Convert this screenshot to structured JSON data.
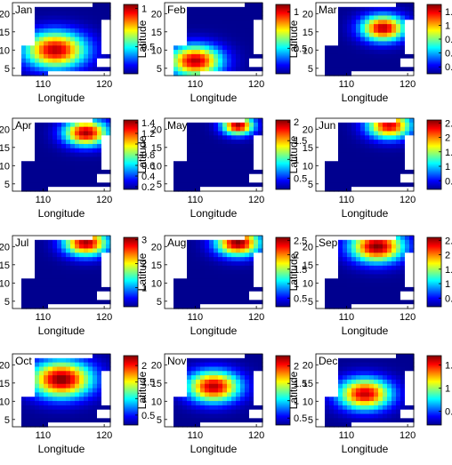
{
  "chart_data": [
    {
      "type": "heatmap",
      "month": "Jan",
      "xlabel": "Longitude",
      "ylabel": "Latitude",
      "xticks": [
        "110",
        "120"
      ],
      "yticks": [
        "5",
        "10",
        "15",
        "20"
      ],
      "xlim": [
        105,
        121
      ],
      "ylim": [
        3,
        23
      ],
      "cbar_ticks": [
        "0.5",
        "1"
      ],
      "cbar_vals": [
        0.5,
        1
      ],
      "cbar_range": [
        0.15,
        1.05
      ],
      "hotspots": [
        {
          "lon": 112,
          "lat": 10,
          "value": 1.0,
          "spread": 3.5
        }
      ]
    },
    {
      "type": "heatmap",
      "month": "Feb",
      "xlabel": "Longitude",
      "ylabel": "Latitude",
      "xticks": [
        "110",
        "120"
      ],
      "yticks": [
        "5",
        "10",
        "15",
        "20"
      ],
      "xlim": [
        105,
        121
      ],
      "ylim": [
        3,
        23
      ],
      "cbar_ticks": [
        "0.5",
        "1"
      ],
      "cbar_vals": [
        0.5,
        1
      ],
      "cbar_range": [
        0.15,
        1.1
      ],
      "hotspots": [
        {
          "lon": 110,
          "lat": 7,
          "value": 1.05,
          "spread": 3.0
        }
      ]
    },
    {
      "type": "heatmap",
      "month": "Mar",
      "xlabel": "Longitude",
      "ylabel": "Latitude",
      "xticks": [
        "110",
        "120"
      ],
      "yticks": [
        "5",
        "10",
        "15",
        "20"
      ],
      "xlim": [
        105,
        121
      ],
      "ylim": [
        3,
        23
      ],
      "cbar_ticks": [
        "0.4",
        "0.6",
        "0.8",
        "1",
        "1.2"
      ],
      "cbar_vals": [
        0.4,
        0.6,
        0.8,
        1,
        1.2
      ],
      "cbar_range": [
        0.3,
        1.3
      ],
      "hotspots": [
        {
          "lon": 116,
          "lat": 16,
          "value": 1.25,
          "spread": 2.5
        }
      ]
    },
    {
      "type": "heatmap",
      "month": "Apr",
      "xlabel": "Longitude",
      "ylabel": "Latitude",
      "xticks": [
        "110",
        "120"
      ],
      "yticks": [
        "5",
        "10",
        "15",
        "20"
      ],
      "xlim": [
        105,
        121
      ],
      "ylim": [
        3,
        23
      ],
      "cbar_ticks": [
        "0.2",
        "0.4",
        "0.6",
        "0.8",
        "1",
        "1.2",
        "1.4"
      ],
      "cbar_vals": [
        0.2,
        0.4,
        0.6,
        0.8,
        1,
        1.2,
        1.4
      ],
      "cbar_range": [
        0.15,
        1.45
      ],
      "hotspots": [
        {
          "lon": 117,
          "lat": 19,
          "value": 1.4,
          "spread": 2.5
        }
      ]
    },
    {
      "type": "heatmap",
      "month": "May",
      "xlabel": "Longitude",
      "ylabel": "Latitude",
      "xticks": [
        "110",
        "120"
      ],
      "yticks": [
        "5",
        "10",
        "15",
        "20"
      ],
      "xlim": [
        105,
        121
      ],
      "ylim": [
        3,
        23
      ],
      "cbar_ticks": [
        "0.5",
        "1",
        "1.5",
        "2"
      ],
      "cbar_vals": [
        0.5,
        1,
        1.5,
        2
      ],
      "cbar_range": [
        0.2,
        2.05
      ],
      "hotspots": [
        {
          "lon": 117,
          "lat": 21,
          "value": 2.0,
          "spread": 1.8
        }
      ]
    },
    {
      "type": "heatmap",
      "month": "Jun",
      "xlabel": "Longitude",
      "ylabel": "Latitude",
      "xticks": [
        "110",
        "120"
      ],
      "yticks": [
        "5",
        "10",
        "15",
        "20"
      ],
      "xlim": [
        105,
        121
      ],
      "ylim": [
        3,
        23
      ],
      "cbar_ticks": [
        "0.5",
        "1",
        "1.5",
        "2",
        "2.5"
      ],
      "cbar_vals": [
        0.5,
        1,
        1.5,
        2,
        2.5
      ],
      "cbar_range": [
        0.2,
        2.6
      ],
      "hotspots": [
        {
          "lon": 117,
          "lat": 21,
          "value": 2.4,
          "spread": 2.5
        }
      ]
    },
    {
      "type": "heatmap",
      "month": "Jul",
      "xlabel": "Longitude",
      "ylabel": "Latitude",
      "xticks": [
        "110",
        "120"
      ],
      "yticks": [
        "5",
        "10",
        "15",
        "20"
      ],
      "xlim": [
        105,
        121
      ],
      "ylim": [
        3,
        23
      ],
      "cbar_ticks": [
        "1",
        "2",
        "3"
      ],
      "cbar_vals": [
        1,
        2,
        3
      ],
      "cbar_range": [
        0.2,
        3.1
      ],
      "hotspots": [
        {
          "lon": 117,
          "lat": 21,
          "value": 3.0,
          "spread": 2.5
        }
      ]
    },
    {
      "type": "heatmap",
      "month": "Aug",
      "xlabel": "Longitude",
      "ylabel": "Latitude",
      "xticks": [
        "110",
        "120"
      ],
      "yticks": [
        "5",
        "10",
        "15",
        "20"
      ],
      "xlim": [
        105,
        121
      ],
      "ylim": [
        3,
        23
      ],
      "cbar_ticks": [
        "0.5",
        "1",
        "1.5",
        "2",
        "2.5"
      ],
      "cbar_vals": [
        0.5,
        1,
        1.5,
        2,
        2.5
      ],
      "cbar_range": [
        0.2,
        2.6
      ],
      "hotspots": [
        {
          "lon": 117,
          "lat": 21,
          "value": 2.6,
          "spread": 2.5
        }
      ]
    },
    {
      "type": "heatmap",
      "month": "Sep",
      "xlabel": "Longitude",
      "ylabel": "Latitude",
      "xticks": [
        "110",
        "120"
      ],
      "yticks": [
        "5",
        "10",
        "15",
        "20"
      ],
      "xlim": [
        105,
        121
      ],
      "ylim": [
        3,
        23
      ],
      "cbar_ticks": [
        "0.5",
        "1",
        "1.5",
        "2",
        "2.5"
      ],
      "cbar_vals": [
        0.5,
        1,
        1.5,
        2,
        2.5
      ],
      "cbar_range": [
        0.2,
        2.6
      ],
      "hotspots": [
        {
          "lon": 115,
          "lat": 20,
          "value": 2.6,
          "spread": 3.0
        }
      ]
    },
    {
      "type": "heatmap",
      "month": "Oct",
      "xlabel": "Longitude",
      "ylabel": "Latitude",
      "xticks": [
        "110",
        "120"
      ],
      "yticks": [
        "5",
        "10",
        "15",
        "20"
      ],
      "xlim": [
        105,
        121
      ],
      "ylim": [
        3,
        23
      ],
      "cbar_ticks": [
        "0.5",
        "1",
        "1.5",
        "2"
      ],
      "cbar_vals": [
        0.5,
        1,
        1.5,
        2
      ],
      "cbar_range": [
        0.2,
        2.3
      ],
      "hotspots": [
        {
          "lon": 113,
          "lat": 16,
          "value": 2.3,
          "spread": 3.5
        }
      ]
    },
    {
      "type": "heatmap",
      "month": "Nov",
      "xlabel": "Longitude",
      "ylabel": "Latitude",
      "xticks": [
        "110",
        "120"
      ],
      "yticks": [
        "5",
        "10",
        "15",
        "20"
      ],
      "xlim": [
        105,
        121
      ],
      "ylim": [
        3,
        23
      ],
      "cbar_ticks": [
        "0.5",
        "1",
        "1.5",
        "2"
      ],
      "cbar_vals": [
        0.5,
        1,
        1.5,
        2
      ],
      "cbar_range": [
        0.3,
        2.3
      ],
      "hotspots": [
        {
          "lon": 113,
          "lat": 14,
          "value": 2.2,
          "spread": 3.0
        }
      ]
    },
    {
      "type": "heatmap",
      "month": "Dec",
      "xlabel": "Longitude",
      "ylabel": "Latitude",
      "xticks": [
        "110",
        "120"
      ],
      "yticks": [
        "5",
        "10",
        "15",
        "20"
      ],
      "xlim": [
        105,
        121
      ],
      "ylim": [
        3,
        23
      ],
      "cbar_ticks": [
        "0.5",
        "1",
        "1.5"
      ],
      "cbar_vals": [
        0.5,
        1,
        1.5
      ],
      "cbar_range": [
        0.2,
        1.7
      ],
      "hotspots": [
        {
          "lon": 113,
          "lat": 12,
          "value": 1.6,
          "spread": 3.0
        }
      ]
    }
  ],
  "colormap": [
    "#00008f",
    "#0000ff",
    "#00ffff",
    "#ffff00",
    "#ff0000",
    "#800000"
  ]
}
